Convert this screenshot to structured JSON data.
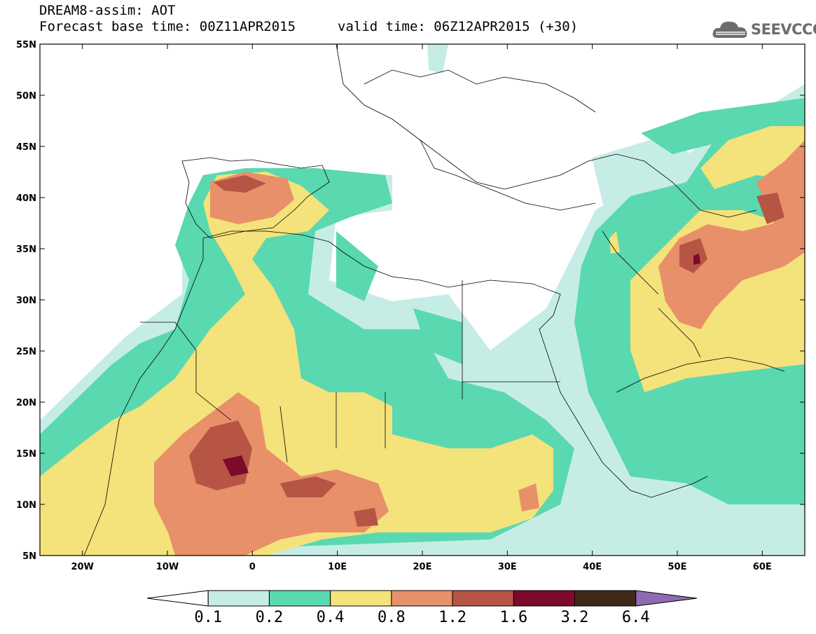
{
  "header": {
    "line1": "DREAM8-assim: AOT",
    "line2": "Forecast base time: 00Z11APR2015",
    "line3": "valid time: 06Z12APR2015 (+30)"
  },
  "logo": {
    "text": "SEEVCCC",
    "icon": "cloud-logo-icon"
  },
  "map": {
    "lon_range": [
      -25,
      65
    ],
    "lat_range": [
      5,
      55
    ],
    "lat_labels": [
      "55N",
      "50N",
      "45N",
      "40N",
      "35N",
      "30N",
      "25N",
      "20N",
      "15N",
      "10N",
      "5N"
    ],
    "lon_labels": [
      "20W",
      "10W",
      "0",
      "10E",
      "20E",
      "30E",
      "40E",
      "50E",
      "60E"
    ]
  },
  "colorbar": {
    "levels": [
      "0.1",
      "0.2",
      "0.4",
      "0.8",
      "1.2",
      "1.6",
      "3.2",
      "6.4"
    ],
    "colors": [
      "#ffffff",
      "#c6ede5",
      "#5ad8b0",
      "#f4e27a",
      "#e8906a",
      "#b75545",
      "#7c0a2a",
      "#3e2a18",
      "#8e6bb0"
    ]
  }
}
